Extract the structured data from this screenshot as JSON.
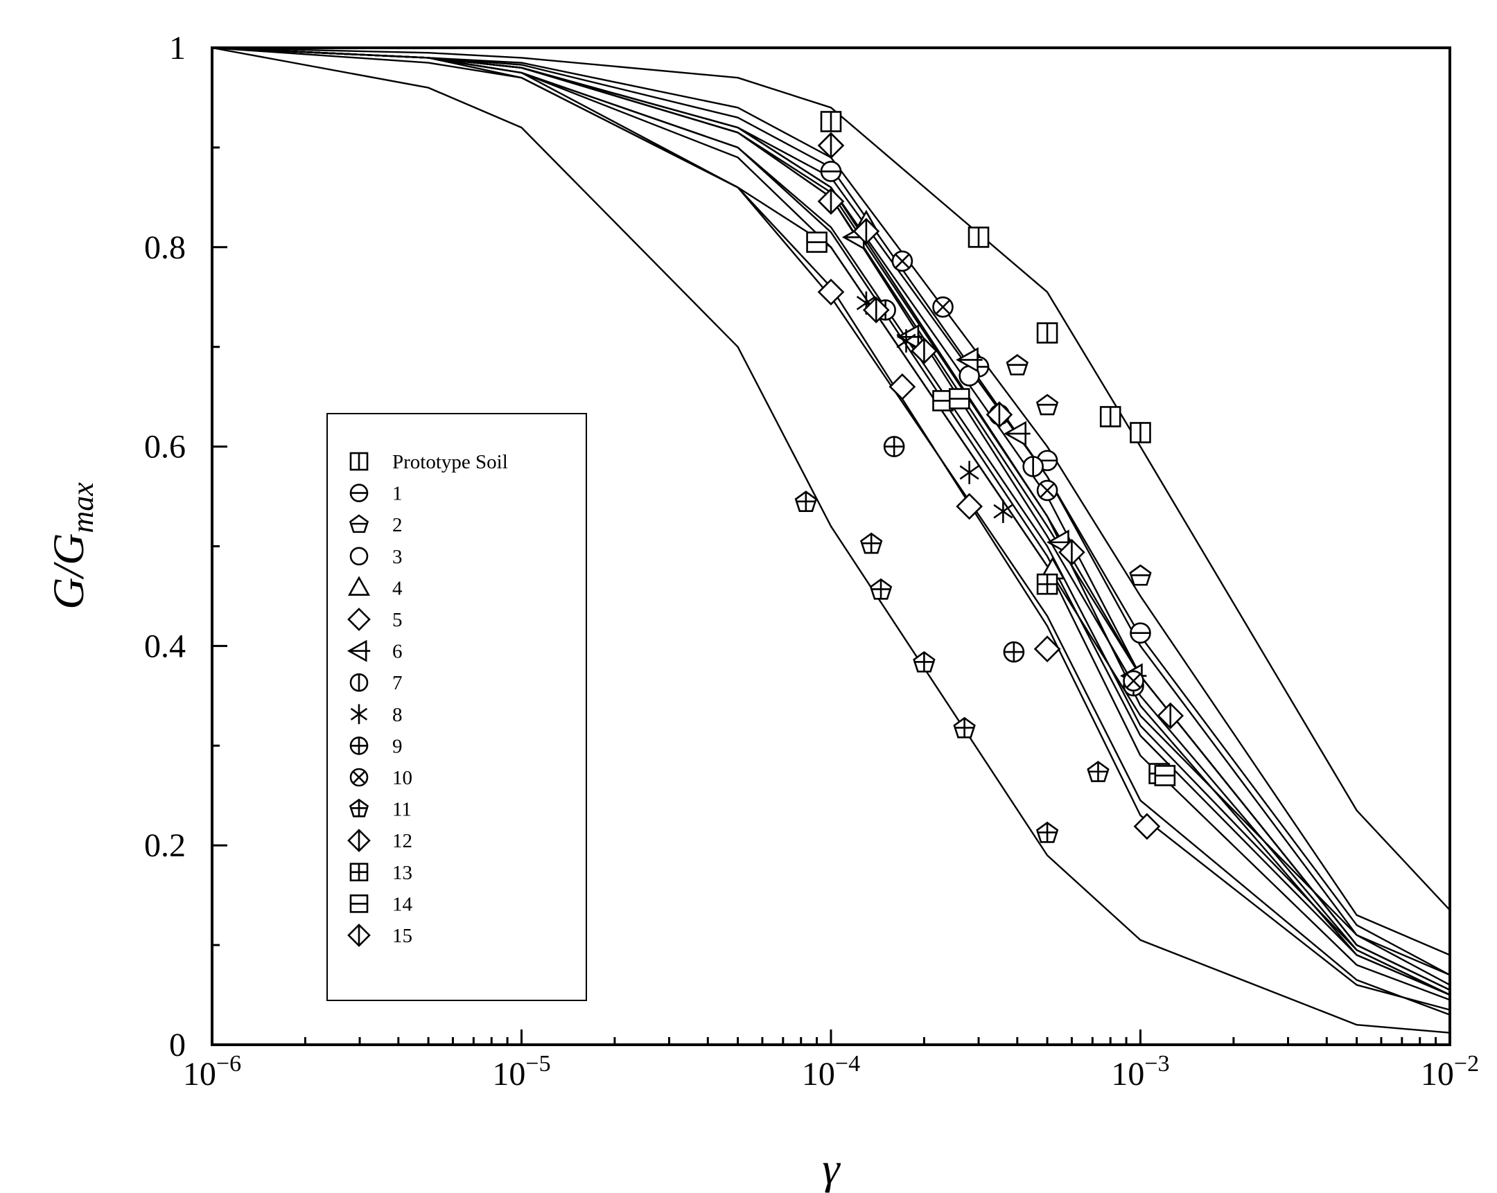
{
  "chart_data": {
    "type": "line",
    "title": "",
    "xlabel": "γ",
    "ylabel": {
      "base": "G/G",
      "sub": "max"
    },
    "xscale": "log",
    "xlim": [
      1e-06,
      0.01
    ],
    "ylim": [
      0,
      1
    ],
    "x_ticks": [
      {
        "base": "10",
        "exp": "−6",
        "value": 1e-06
      },
      {
        "base": "10",
        "exp": "−5",
        "value": 1e-05
      },
      {
        "base": "10",
        "exp": "−4",
        "value": 0.0001
      },
      {
        "base": "10",
        "exp": "−3",
        "value": 0.001
      },
      {
        "base": "10",
        "exp": "−2",
        "value": 0.01
      }
    ],
    "y_ticks": [
      {
        "label": "0",
        "value": 0
      },
      {
        "label": "0.2",
        "value": 0.2
      },
      {
        "label": "0.4",
        "value": 0.4
      },
      {
        "label": "0.6",
        "value": 0.6
      },
      {
        "label": "0.8",
        "value": 0.8
      },
      {
        "label": "1",
        "value": 1
      }
    ],
    "legend": {
      "position": "center-left",
      "frame": true
    },
    "curve_x": [
      1e-06,
      5e-06,
      1e-05,
      5e-05,
      0.0001,
      0.0005,
      0.001,
      0.005,
      0.01
    ],
    "series": [
      {
        "name": "Prototype Soil",
        "marker": "square-vline",
        "curve": [
          1,
          0.995,
          0.99,
          0.97,
          0.94,
          0.755,
          0.6,
          0.235,
          0.135
        ],
        "points": [
          [
            0.0001,
            0.926
          ],
          [
            0.0003,
            0.81
          ],
          [
            0.0005,
            0.714
          ],
          [
            0.0008,
            0.63
          ],
          [
            0.001,
            0.614
          ]
        ]
      },
      {
        "name": "1",
        "marker": "circle-hline",
        "curve": [
          1,
          0.99,
          0.983,
          0.93,
          0.88,
          0.57,
          0.41,
          0.12,
          0.07
        ],
        "points": [
          [
            0.0001,
            0.876
          ],
          [
            0.0003,
            0.68
          ],
          [
            0.0005,
            0.586
          ],
          [
            0.001,
            0.413
          ]
        ]
      },
      {
        "name": "2",
        "marker": "pentagon-hline",
        "curve": [
          1,
          0.99,
          0.985,
          0.94,
          0.89,
          0.6,
          0.45,
          0.13,
          0.09
        ],
        "points": [
          [
            0.0004,
            0.681
          ],
          [
            0.0005,
            0.641
          ],
          [
            0.001,
            0.47
          ]
        ]
      },
      {
        "name": "3",
        "marker": "circle",
        "curve": [
          1,
          0.99,
          0.98,
          0.92,
          0.86,
          0.55,
          0.37,
          0.1,
          0.055
        ],
        "points": [
          [
            0.00028,
            0.671
          ]
        ]
      },
      {
        "name": "4",
        "marker": "triangle",
        "curve": [
          1,
          0.99,
          0.98,
          0.915,
          0.855,
          0.53,
          0.37,
          0.1,
          0.055
        ],
        "points": [
          [
            0.00013,
            0.824
          ],
          [
            0.00052,
            0.476
          ]
        ]
      },
      {
        "name": "5",
        "marker": "diamond",
        "curve": [
          1,
          0.985,
          0.97,
          0.86,
          0.76,
          0.42,
          0.23,
          0.06,
          0.035
        ],
        "points": [
          [
            0.0001,
            0.755
          ],
          [
            0.00017,
            0.66
          ],
          [
            0.00028,
            0.54
          ],
          [
            0.0005,
            0.397
          ],
          [
            0.00105,
            0.219
          ]
        ]
      },
      {
        "name": "6",
        "marker": "triangle-left-cross",
        "curve": [
          1,
          0.99,
          0.98,
          0.915,
          0.85,
          0.52,
          0.37,
          0.1,
          0.055
        ],
        "points": [
          [
            0.00012,
            0.81
          ],
          [
            0.00018,
            0.71
          ],
          [
            0.00028,
            0.687
          ],
          [
            0.0004,
            0.613
          ],
          [
            0.00055,
            0.504
          ],
          [
            0.00095,
            0.37
          ]
        ]
      },
      {
        "name": "7",
        "marker": "circle-vline",
        "curve": [
          1,
          0.99,
          0.975,
          0.9,
          0.815,
          0.49,
          0.31,
          0.09,
          0.05
        ],
        "points": [
          [
            0.00015,
            0.737
          ],
          [
            0.00035,
            0.632
          ],
          [
            0.00045,
            0.58
          ],
          [
            0.00095,
            0.36
          ]
        ]
      },
      {
        "name": "8",
        "marker": "asterisk",
        "curve": [
          1,
          0.99,
          0.975,
          0.9,
          0.82,
          0.5,
          0.32,
          0.095,
          0.05
        ],
        "points": [
          [
            0.00013,
            0.744
          ],
          [
            0.000175,
            0.706
          ],
          [
            0.00028,
            0.574
          ],
          [
            0.00036,
            0.535
          ]
        ]
      },
      {
        "name": "9",
        "marker": "circle-plus",
        "curve": [
          1,
          0.99,
          0.975,
          0.86,
          0.8,
          0.48,
          0.33,
          0.11,
          0.07
        ],
        "points": [
          [
            0.00016,
            0.6
          ],
          [
            0.00039,
            0.394
          ]
        ]
      },
      {
        "name": "10",
        "marker": "circle-cross",
        "curve": [
          1,
          0.99,
          0.98,
          0.92,
          0.87,
          0.57,
          0.4,
          0.11,
          0.06
        ],
        "points": [
          [
            0.00017,
            0.786
          ],
          [
            0.00023,
            0.74
          ],
          [
            0.0005,
            0.556
          ],
          [
            0.00095,
            0.365
          ]
        ]
      },
      {
        "name": "11",
        "marker": "pentagon-plus",
        "curve": [
          1,
          0.96,
          0.92,
          0.7,
          0.52,
          0.19,
          0.105,
          0.02,
          0.012
        ],
        "points": [
          [
            8.3e-05,
            0.544
          ],
          [
            0.000135,
            0.502
          ],
          [
            0.000145,
            0.456
          ],
          [
            0.0002,
            0.383
          ],
          [
            0.00027,
            0.317
          ],
          [
            0.0005,
            0.212
          ],
          [
            0.00073,
            0.273
          ]
        ]
      },
      {
        "name": "12",
        "marker": "diamond-vline",
        "curve": [
          1,
          0.99,
          0.98,
          0.92,
          0.86,
          0.53,
          0.34,
          0.09,
          0.05
        ],
        "points": [
          [
            0.0001,
            0.846
          ],
          [
            0.0002,
            0.696
          ],
          [
            0.0006,
            0.494
          ],
          [
            0.00125,
            0.33
          ]
        ]
      },
      {
        "name": "13",
        "marker": "square-plus",
        "curve": [
          1,
          0.99,
          0.975,
          0.89,
          0.8,
          0.48,
          0.29,
          0.08,
          0.045
        ],
        "points": [
          [
            0.0005,
            0.462
          ],
          [
            0.00115,
            0.272
          ]
        ]
      },
      {
        "name": "14",
        "marker": "square-hline",
        "curve": [
          1,
          0.99,
          0.97,
          0.86,
          0.75,
          0.43,
          0.245,
          0.065,
          0.03
        ],
        "points": [
          [
            9e-05,
            0.805
          ],
          [
            0.00023,
            0.646
          ],
          [
            0.00026,
            0.648
          ],
          [
            0.0012,
            0.27
          ]
        ]
      },
      {
        "name": "15",
        "marker": "diamond-vline",
        "curve": [
          1,
          0.99,
          0.98,
          0.915,
          0.85,
          0.51,
          0.35,
          0.095,
          0.05
        ],
        "points": [
          [
            0.0001,
            0.902
          ],
          [
            0.00013,
            0.816
          ],
          [
            0.00014,
            0.737
          ],
          [
            0.00035,
            0.632
          ]
        ]
      }
    ]
  }
}
